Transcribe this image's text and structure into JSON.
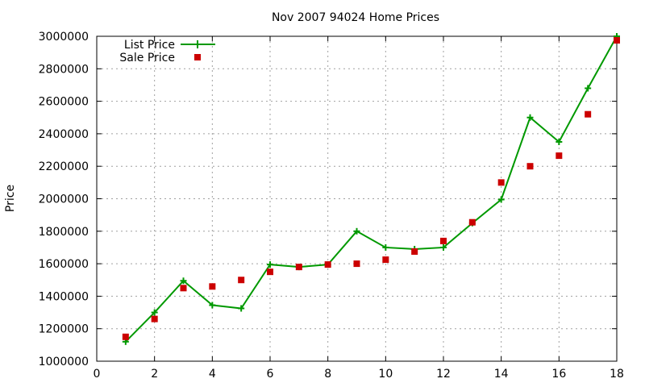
{
  "chart_data": {
    "type": "line",
    "title": "Nov 2007 94024 Home Prices",
    "xlabel": "",
    "ylabel": "Price",
    "xlim": [
      0,
      18
    ],
    "ylim": [
      1000000,
      3000000
    ],
    "x_ticks": [
      "0",
      "2",
      "4",
      "6",
      "8",
      "10",
      "12",
      "14",
      "16",
      "18"
    ],
    "y_ticks": [
      "1000000",
      "1200000",
      "1400000",
      "1600000",
      "1800000",
      "2000000",
      "2200000",
      "2400000",
      "2600000",
      "2800000",
      "3000000"
    ],
    "grid": true,
    "legend_position": "top-left",
    "series": [
      {
        "name": "List Price",
        "style": "lines+crosses",
        "color": "#009900",
        "x": [
          1,
          2,
          3,
          4,
          5,
          6,
          7,
          8,
          9,
          10,
          11,
          12,
          13,
          14,
          15,
          16,
          17,
          18
        ],
        "values": [
          1120000,
          1300000,
          1495000,
          1345000,
          1325000,
          1595000,
          1580000,
          1595000,
          1800000,
          1700000,
          1690000,
          1700000,
          1850000,
          1995000,
          2500000,
          2350000,
          2680000,
          3000000
        ]
      },
      {
        "name": "Sale Price",
        "style": "squares",
        "color": "#cc0000",
        "x": [
          1,
          2,
          3,
          4,
          5,
          6,
          7,
          8,
          9,
          10,
          11,
          12,
          13,
          14,
          15,
          16,
          17,
          18
        ],
        "values": [
          1150000,
          1260000,
          1450000,
          1460000,
          1500000,
          1550000,
          1580000,
          1595000,
          1600000,
          1625000,
          1675000,
          1740000,
          1855000,
          2100000,
          2200000,
          2265000,
          2520000,
          2975000
        ]
      }
    ]
  }
}
